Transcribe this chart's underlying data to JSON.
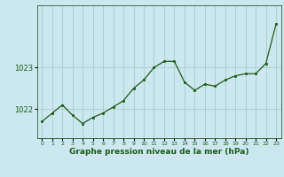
{
  "x": [
    0,
    1,
    2,
    3,
    4,
    5,
    6,
    7,
    8,
    9,
    10,
    11,
    12,
    13,
    14,
    15,
    16,
    17,
    18,
    19,
    20,
    21,
    22,
    23
  ],
  "y": [
    1021.7,
    1021.9,
    1022.1,
    1021.85,
    1021.65,
    1021.8,
    1021.9,
    1022.05,
    1022.2,
    1022.5,
    1022.7,
    1023.0,
    1023.15,
    1023.15,
    1022.65,
    1022.45,
    1022.6,
    1022.55,
    1022.7,
    1022.8,
    1022.85,
    1022.85,
    1023.1,
    1024.05
  ],
  "line_color": "#1a5c1a",
  "marker_color": "#1a5c1a",
  "bg_color": "#cce8ee",
  "grid_color": "#aacccc",
  "xlabel": "Graphe pression niveau de la mer (hPa)",
  "xlabel_color": "#1a5c1a",
  "tick_label_color": "#1a5c1a",
  "yticks": [
    1022,
    1023
  ],
  "ylim": [
    1021.3,
    1024.5
  ],
  "xlim": [
    -0.5,
    23.5
  ],
  "figsize": [
    3.2,
    2.0
  ],
  "dpi": 100
}
